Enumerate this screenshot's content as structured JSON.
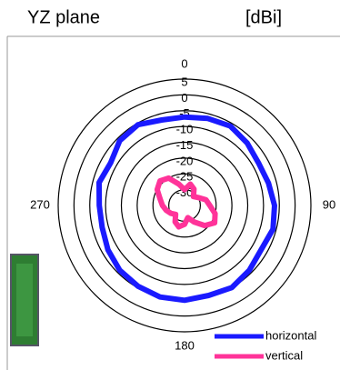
{
  "chart_data": {
    "type": "polar",
    "title": "YZ plane",
    "unit_label": "[dBi]",
    "theta": [
      0,
      15,
      30,
      45,
      60,
      75,
      90,
      105,
      120,
      135,
      150,
      165,
      180,
      195,
      210,
      225,
      240,
      255,
      270,
      285,
      300,
      315,
      330,
      345
    ],
    "rlim": [
      -35,
      5
    ],
    "rticks": [
      5,
      0,
      -5,
      -10,
      -15,
      -20,
      -25,
      -30
    ],
    "thetaticks": [
      0,
      90,
      180,
      270
    ],
    "series": [
      {
        "name": "horizontal",
        "color": "#1a1aff",
        "values": [
          -7,
          -6.5,
          -6,
          -7,
          -8,
          -7.5,
          -6.5,
          -6,
          -7,
          -6,
          -5,
          -5.5,
          -5,
          -5,
          -5.5,
          -6,
          -7,
          -8,
          -8,
          -7,
          -8,
          -6,
          -5.5,
          -7
        ]
      },
      {
        "name": "vertical",
        "color": "#ff3399",
        "values": [
          -30,
          -28,
          -29,
          -31,
          -30,
          -28,
          -27,
          -25,
          -24,
          -26,
          -29,
          -31,
          -29,
          -28,
          -29,
          -31,
          -30,
          -29,
          -28,
          -27,
          -25,
          -24,
          -25,
          -28
        ]
      }
    ]
  }
}
